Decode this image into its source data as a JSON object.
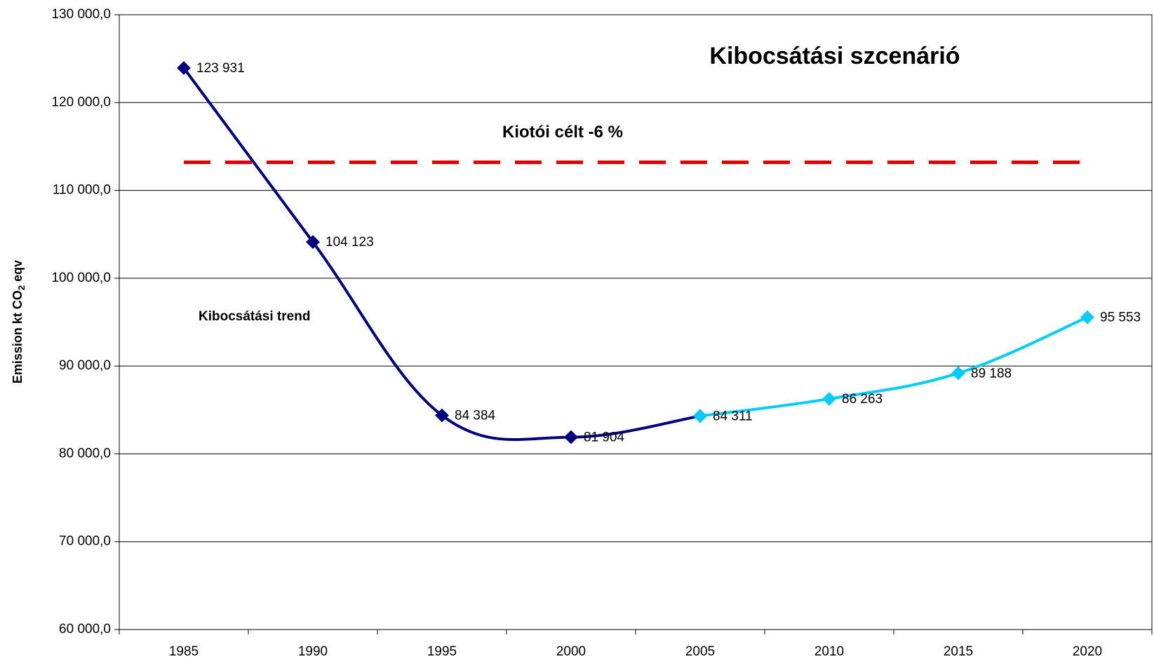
{
  "chart_data": {
    "type": "line",
    "title": "Kibocsátási szcenárió",
    "ylabel": [
      "Emission kt CO",
      "2",
      " eqv"
    ],
    "categories": [
      "1985",
      "1990",
      "1995",
      "2000",
      "2005",
      "2010",
      "2015",
      "2020"
    ],
    "series": [
      {
        "name": "Kibocsátási trend",
        "color": "#000080",
        "values": [
          123931,
          104123,
          84384,
          81904,
          84311,
          null,
          null,
          null
        ],
        "value_labels": [
          "123 931",
          "104 123",
          "84 384",
          "81 904",
          "84 311",
          null,
          null,
          null
        ]
      },
      {
        "color": "#00ccff",
        "values": [
          null,
          null,
          null,
          null,
          84311,
          86263,
          89188,
          95553
        ],
        "value_labels": [
          null,
          null,
          null,
          null,
          null,
          "86 263",
          "89 188",
          "95 553"
        ]
      }
    ],
    "reference_line": {
      "label": "Kiotói célt -6 %",
      "value": 113200,
      "color": "#e00000"
    },
    "ylim": [
      60000,
      130000
    ],
    "yticks": [
      {
        "value": 60000,
        "label": "60 000,0"
      },
      {
        "value": 70000,
        "label": "70 000,0"
      },
      {
        "value": 80000,
        "label": "80 000,0"
      },
      {
        "value": 90000,
        "label": "90 000,0"
      },
      {
        "value": 100000,
        "label": "100 000,0"
      },
      {
        "value": 110000,
        "label": "110 000,0"
      },
      {
        "value": 120000,
        "label": "120 000,0"
      },
      {
        "value": 130000,
        "label": "130 000,0"
      }
    ],
    "grid": true
  }
}
